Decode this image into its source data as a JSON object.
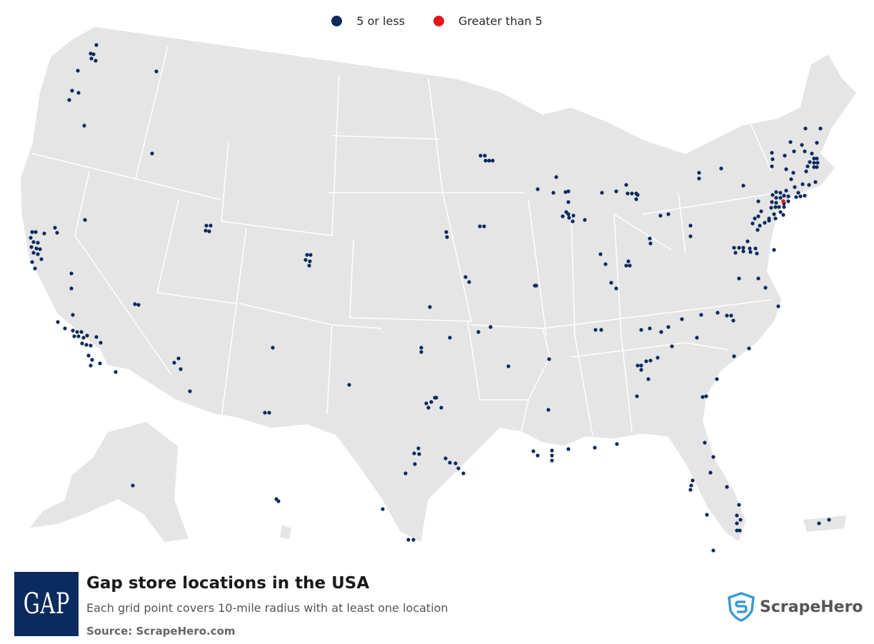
{
  "legend": [
    {
      "label": "5 or less",
      "color": "#0b2a5e"
    },
    {
      "label": "Greater than 5",
      "color": "#e8141b"
    }
  ],
  "title": "Gap store locations in the USA",
  "subtitle": "Each grid point covers 10-mile radius with at least one location",
  "source": "Source: ScrapeHero.com",
  "brand": {
    "logo_text": "GAP",
    "name": "ScrapeHero"
  },
  "colors": {
    "land": "#e5e5e5",
    "border": "#ffffff",
    "dot_low": "#0b2a5e",
    "dot_high": "#e8141b",
    "logo_bg": "#0b2a5e"
  }
}
